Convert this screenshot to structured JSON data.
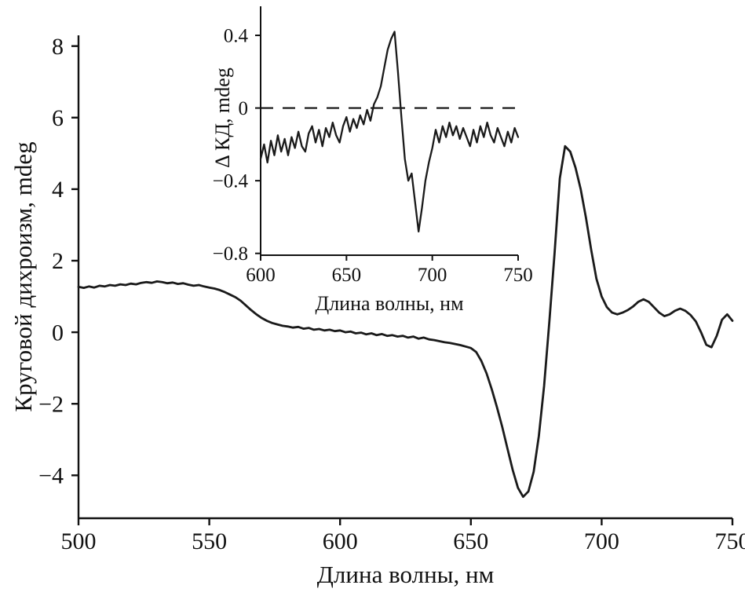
{
  "figure": {
    "background": "#ffffff",
    "line_color": "#1a1a1a",
    "axis_color": "#111111"
  },
  "chart_data": [
    {
      "id": "main",
      "type": "line",
      "title": "",
      "xlabel": "Длина волны, нм",
      "ylabel": "Круговой дихроизм, mdeg",
      "xlim": [
        500,
        750
      ],
      "ylim": [
        -5.2,
        8.3
      ],
      "xticks": [
        500,
        550,
        600,
        650,
        700,
        750
      ],
      "yticks": [
        8,
        6,
        4,
        2,
        0,
        -2,
        -4
      ],
      "grid": false,
      "legend": "none",
      "x_start": 500,
      "x_step": 2,
      "y": [
        1.27,
        1.24,
        1.28,
        1.25,
        1.3,
        1.28,
        1.32,
        1.3,
        1.34,
        1.32,
        1.36,
        1.34,
        1.38,
        1.4,
        1.38,
        1.42,
        1.4,
        1.37,
        1.39,
        1.35,
        1.37,
        1.33,
        1.3,
        1.32,
        1.28,
        1.25,
        1.22,
        1.18,
        1.12,
        1.05,
        0.98,
        0.88,
        0.75,
        0.62,
        0.5,
        0.4,
        0.32,
        0.26,
        0.22,
        0.18,
        0.16,
        0.13,
        0.15,
        0.1,
        0.12,
        0.07,
        0.09,
        0.05,
        0.07,
        0.03,
        0.05,
        0.0,
        0.02,
        -0.03,
        -0.01,
        -0.06,
        -0.03,
        -0.08,
        -0.05,
        -0.1,
        -0.08,
        -0.12,
        -0.1,
        -0.15,
        -0.12,
        -0.18,
        -0.15,
        -0.2,
        -0.22,
        -0.25,
        -0.28,
        -0.3,
        -0.33,
        -0.36,
        -0.4,
        -0.44,
        -0.55,
        -0.8,
        -1.15,
        -1.6,
        -2.1,
        -2.65,
        -3.25,
        -3.85,
        -4.35,
        -4.6,
        -4.45,
        -3.9,
        -2.9,
        -1.5,
        0.3,
        2.2,
        4.3,
        5.2,
        5.05,
        4.6,
        4.0,
        3.2,
        2.3,
        1.5,
        1.0,
        0.7,
        0.55,
        0.5,
        0.55,
        0.62,
        0.72,
        0.85,
        0.92,
        0.85,
        0.7,
        0.55,
        0.45,
        0.5,
        0.6,
        0.66,
        0.6,
        0.48,
        0.3,
        0.0,
        -0.35,
        -0.42,
        -0.1,
        0.35,
        0.5,
        0.32
      ]
    },
    {
      "id": "inset",
      "type": "line",
      "title": "",
      "xlabel": "Длина волны, нм",
      "ylabel": "Δ КД, mdeg",
      "xlim": [
        600,
        750
      ],
      "ylim": [
        -0.81,
        0.56
      ],
      "xticks": [
        600,
        650,
        700,
        750
      ],
      "yticks": [
        0.4,
        0,
        -0.4,
        -0.8
      ],
      "grid": false,
      "legend": "none",
      "zero_line_dashed": true,
      "x_start": 600,
      "x_step": 2,
      "y": [
        -0.28,
        -0.2,
        -0.3,
        -0.18,
        -0.26,
        -0.15,
        -0.24,
        -0.17,
        -0.26,
        -0.16,
        -0.22,
        -0.13,
        -0.21,
        -0.24,
        -0.14,
        -0.1,
        -0.19,
        -0.12,
        -0.21,
        -0.11,
        -0.16,
        -0.08,
        -0.15,
        -0.19,
        -0.1,
        -0.05,
        -0.13,
        -0.06,
        -0.11,
        -0.04,
        -0.09,
        -0.01,
        -0.07,
        0.02,
        0.06,
        0.12,
        0.22,
        0.32,
        0.38,
        0.42,
        0.2,
        -0.05,
        -0.28,
        -0.4,
        -0.36,
        -0.52,
        -0.68,
        -0.55,
        -0.4,
        -0.3,
        -0.22,
        -0.12,
        -0.19,
        -0.1,
        -0.16,
        -0.08,
        -0.15,
        -0.1,
        -0.17,
        -0.11,
        -0.16,
        -0.21,
        -0.12,
        -0.19,
        -0.1,
        -0.16,
        -0.08,
        -0.15,
        -0.19,
        -0.11,
        -0.16,
        -0.21,
        -0.13,
        -0.19,
        -0.11,
        -0.16
      ]
    }
  ]
}
